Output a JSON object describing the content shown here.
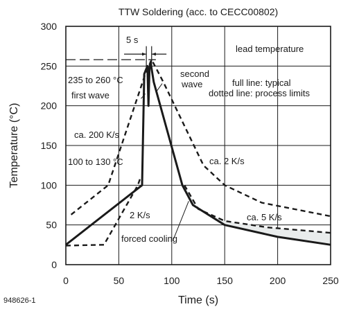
{
  "chart_data": {
    "type": "line",
    "title": "TTW Soldering (acc. to CECC00802)",
    "xlabel": "Time (s)",
    "ylabel": "Temperature (°C)",
    "figure_id": "948626-1",
    "xlim": [
      0,
      250
    ],
    "ylim": [
      0,
      300
    ],
    "xticks": [
      0,
      50,
      100,
      150,
      200,
      250
    ],
    "yticks": [
      0,
      50,
      100,
      150,
      200,
      250,
      300
    ],
    "grid": "major",
    "series": [
      {
        "style": "solid",
        "points": [
          [
            0,
            25
          ],
          [
            72,
            100
          ],
          [
            74,
            240
          ],
          [
            77,
            250
          ],
          [
            78,
            200
          ],
          [
            79,
            248
          ],
          [
            80,
            255
          ],
          [
            83,
            230
          ],
          [
            110,
            100
          ],
          [
            120,
            75
          ],
          [
            150,
            50
          ],
          [
            200,
            35
          ],
          [
            250,
            25
          ]
        ]
      },
      {
        "style": "dashed",
        "points": [
          [
            5,
            63
          ],
          [
            40,
            100
          ],
          [
            75,
            240
          ],
          [
            81,
            258
          ],
          [
            92,
            230
          ],
          [
            130,
            125
          ],
          [
            150,
            100
          ],
          [
            185,
            78
          ],
          [
            250,
            61
          ]
        ]
      },
      {
        "style": "dashed",
        "points": [
          [
            0,
            24
          ],
          [
            36,
            25
          ],
          [
            68,
            100
          ],
          [
            70,
            108
          ]
        ]
      },
      {
        "style": "dashed",
        "points": [
          [
            112,
            100
          ],
          [
            125,
            70
          ],
          [
            150,
            55
          ],
          [
            190,
            47
          ],
          [
            250,
            40
          ]
        ]
      }
    ],
    "annotations": {
      "interval": "5 s",
      "lead_temperature": "lead temperature",
      "peak_range": "235 to 260 °C",
      "first_wave": "first wave",
      "second_wave_1": "second",
      "second_wave_2": "wave",
      "legend_1": "full line: typical",
      "legend_2": "dotted line: process limits",
      "heat_rate": "ca. 200 K/s",
      "preheat": "100 to 130 °C",
      "cool_2": "ca. 2 K/s",
      "cool_5": "ca. 5 K/s",
      "preheat_rate": "2 K/s",
      "forced_cooling": "forced cooling"
    }
  }
}
